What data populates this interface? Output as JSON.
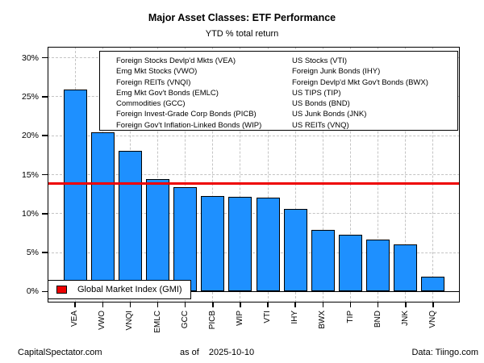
{
  "header": {
    "title": "Major Asset Classes: ETF Performance",
    "subtitle": "YTD % total return"
  },
  "legend_box": {
    "left_column": [
      "Foreign Stocks Devlp'd Mkts (VEA)",
      "Emg Mkt Stocks (VWO)",
      "Foreign REITs (VNQI)",
      "Emg Mkt Gov't Bonds (EMLC)",
      "Commodities (GCC)",
      "Foreign Invest-Grade Corp Bonds (PICB)",
      "Foreign Gov't Inflation-Linked Bonds (WIP)"
    ],
    "right_column": [
      "US Stocks (VTI)",
      "Foreign Junk Bonds (IHY)",
      "Foreign Devlp'd Mkt Gov't Bonds (BWX)",
      "US TIPS (TIP)",
      "US Bonds (BND)",
      "US Junk Bonds (JNK)",
      "US REITs (VNQ)"
    ]
  },
  "gmi_legend": {
    "label": "Global Market Index (GMI)",
    "color": "#EE0000"
  },
  "footer": {
    "left": "CapitalSpectator.com",
    "center_prefix": "as of",
    "date": "2025-10-10",
    "right": "Data: Tiingo.com"
  },
  "chart_data": {
    "type": "bar",
    "title": "Major Asset Classes: ETF Performance",
    "subtitle": "YTD % total return",
    "categories": [
      "VEA",
      "VWO",
      "VNQI",
      "EMLC",
      "GCC",
      "PICB",
      "WIP",
      "VTI",
      "IHY",
      "BWX",
      "TIP",
      "BND",
      "JNK",
      "VNQ"
    ],
    "values": [
      25.9,
      20.4,
      18.1,
      14.4,
      13.4,
      12.3,
      12.2,
      12.1,
      10.6,
      7.9,
      7.3,
      6.7,
      6.1,
      1.9
    ],
    "unit": "%",
    "yticks": [
      0,
      5,
      10,
      15,
      20,
      25,
      30
    ],
    "ytick_labels": [
      "0%",
      "5%",
      "10%",
      "15%",
      "20%",
      "25%",
      "30%"
    ],
    "ylim": [
      -1.4,
      31.4
    ],
    "grid": true,
    "bar_color": "#1E90FF",
    "bar_border_color": "#000000",
    "reference_line": {
      "name": "Global Market Index (GMI)",
      "value": 13.9,
      "color": "#EE0000"
    },
    "legend_position": "top-center"
  }
}
